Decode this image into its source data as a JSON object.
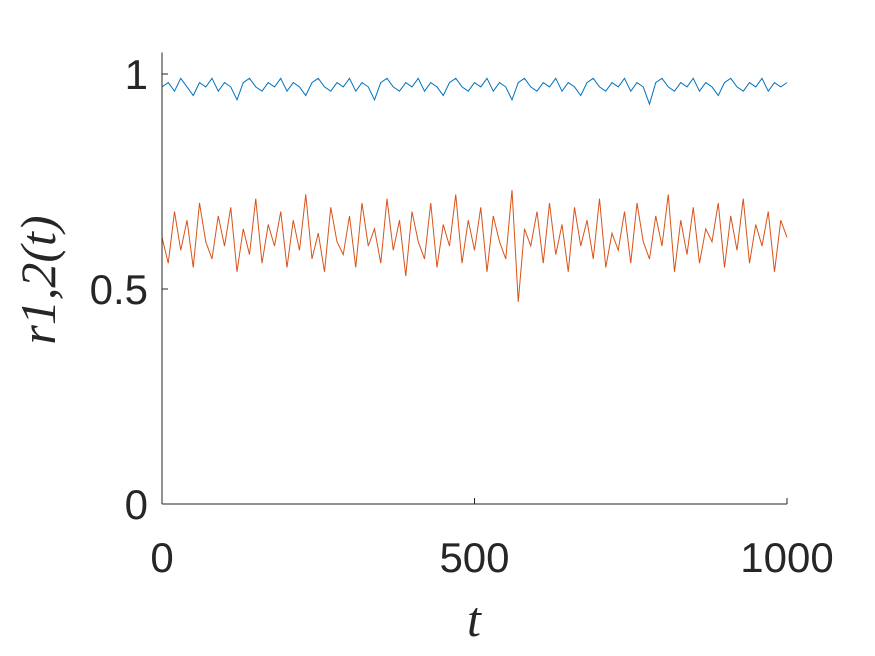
{
  "chart_data": {
    "type": "line",
    "xlabel": "t",
    "ylabel": "r1,2(t)",
    "x": [
      0,
      10,
      20,
      30,
      40,
      50,
      60,
      70,
      80,
      90,
      100,
      110,
      120,
      130,
      140,
      150,
      160,
      170,
      180,
      190,
      200,
      210,
      220,
      230,
      240,
      250,
      260,
      270,
      280,
      290,
      300,
      310,
      320,
      330,
      340,
      350,
      360,
      370,
      380,
      390,
      400,
      410,
      420,
      430,
      440,
      450,
      460,
      470,
      480,
      490,
      500,
      510,
      520,
      530,
      540,
      550,
      560,
      570,
      580,
      590,
      600,
      610,
      620,
      630,
      640,
      650,
      660,
      670,
      680,
      690,
      700,
      710,
      720,
      730,
      740,
      750,
      760,
      770,
      780,
      790,
      800,
      810,
      820,
      830,
      840,
      850,
      860,
      870,
      880,
      890,
      900,
      910,
      920,
      930,
      940,
      950,
      960,
      970,
      980,
      990,
      1000
    ],
    "series": [
      {
        "color": "#0072bd",
        "values": [
          0.97,
          0.98,
          0.96,
          0.99,
          0.97,
          0.95,
          0.98,
          0.97,
          0.99,
          0.96,
          0.98,
          0.97,
          0.94,
          0.98,
          0.99,
          0.97,
          0.96,
          0.98,
          0.97,
          0.99,
          0.96,
          0.98,
          0.97,
          0.95,
          0.98,
          0.99,
          0.97,
          0.96,
          0.98,
          0.97,
          0.99,
          0.96,
          0.98,
          0.97,
          0.94,
          0.98,
          0.99,
          0.97,
          0.96,
          0.98,
          0.97,
          0.99,
          0.96,
          0.98,
          0.97,
          0.95,
          0.98,
          0.99,
          0.97,
          0.96,
          0.98,
          0.97,
          0.99,
          0.96,
          0.98,
          0.97,
          0.94,
          0.98,
          0.99,
          0.97,
          0.96,
          0.98,
          0.97,
          0.99,
          0.96,
          0.98,
          0.97,
          0.95,
          0.98,
          0.99,
          0.97,
          0.96,
          0.98,
          0.97,
          0.99,
          0.96,
          0.98,
          0.97,
          0.93,
          0.98,
          0.99,
          0.97,
          0.96,
          0.98,
          0.97,
          0.99,
          0.96,
          0.98,
          0.97,
          0.95,
          0.98,
          0.99,
          0.97,
          0.96,
          0.98,
          0.97,
          0.99,
          0.96,
          0.98,
          0.97,
          0.98
        ]
      },
      {
        "color": "#d95319",
        "values": [
          0.62,
          0.56,
          0.68,
          0.59,
          0.66,
          0.55,
          0.7,
          0.61,
          0.57,
          0.67,
          0.6,
          0.69,
          0.54,
          0.64,
          0.58,
          0.71,
          0.56,
          0.65,
          0.6,
          0.68,
          0.55,
          0.66,
          0.59,
          0.72,
          0.57,
          0.63,
          0.54,
          0.69,
          0.61,
          0.58,
          0.67,
          0.55,
          0.7,
          0.6,
          0.64,
          0.56,
          0.71,
          0.59,
          0.66,
          0.53,
          0.68,
          0.61,
          0.57,
          0.7,
          0.55,
          0.65,
          0.6,
          0.72,
          0.56,
          0.66,
          0.59,
          0.69,
          0.54,
          0.67,
          0.61,
          0.57,
          0.73,
          0.47,
          0.64,
          0.6,
          0.68,
          0.56,
          0.7,
          0.58,
          0.65,
          0.54,
          0.69,
          0.6,
          0.66,
          0.57,
          0.71,
          0.55,
          0.63,
          0.59,
          0.68,
          0.56,
          0.7,
          0.61,
          0.57,
          0.67,
          0.6,
          0.72,
          0.54,
          0.66,
          0.58,
          0.69,
          0.56,
          0.64,
          0.61,
          0.7,
          0.55,
          0.67,
          0.59,
          0.71,
          0.56,
          0.65,
          0.6,
          0.68,
          0.54,
          0.66,
          0.62
        ]
      }
    ],
    "xlim": [
      0,
      1000
    ],
    "xticks": [
      0,
      500,
      1000
    ],
    "ylim": [
      0,
      1.05
    ],
    "yticks": [
      0,
      0.5,
      1
    ]
  }
}
